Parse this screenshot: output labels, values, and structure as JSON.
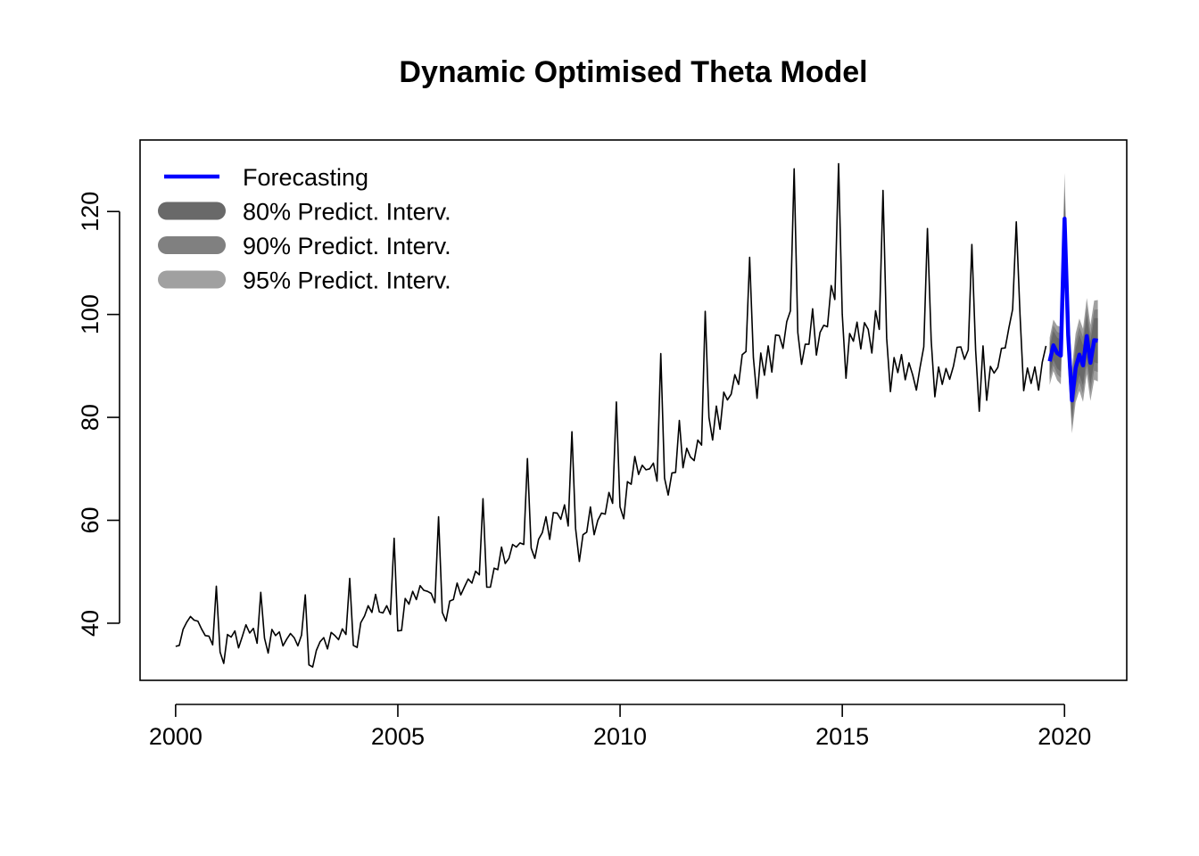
{
  "chart_data": {
    "type": "line",
    "title": "Dynamic Optimised Theta Model",
    "xlabel": "",
    "ylabel": "",
    "xlim": [
      1999.2,
      2021.4
    ],
    "ylim": [
      28.9,
      133.9
    ],
    "x_ticks": [
      "2000",
      "2005",
      "2010",
      "2015",
      "2020"
    ],
    "y_ticks": [
      "40",
      "60",
      "80",
      "100",
      "120"
    ],
    "grid": false,
    "legend_position": "top-left",
    "legend": [
      {
        "label": "Forecasting",
        "color": "#0000ff",
        "kind": "line"
      },
      {
        "label": "80% Predict. Interv.",
        "color": "#696969",
        "kind": "band"
      },
      {
        "label": "90% Predict. Interv.",
        "color": "#808080",
        "kind": "band"
      },
      {
        "label": "95% Predict. Interv.",
        "color": "#a0a0a0",
        "kind": "band"
      }
    ],
    "series": [
      {
        "role": "observed",
        "color": "#000000",
        "start": 2000.0,
        "step": 0.08333,
        "values": [
          35.5,
          35.7,
          38.8,
          40.2,
          41.3,
          40.6,
          40.4,
          38.9,
          37.6,
          37.5,
          35.8,
          47.2,
          34.4,
          32.2,
          37.8,
          37.3,
          38.5,
          35.2,
          37.4,
          39.7,
          38.1,
          39.0,
          36.1,
          46.0,
          37.1,
          34.2,
          38.8,
          37.6,
          38.3,
          35.6,
          36.9,
          38.0,
          37.2,
          35.6,
          37.7,
          45.5,
          31.9,
          31.5,
          34.7,
          36.4,
          37.2,
          35.0,
          38.2,
          37.6,
          36.8,
          38.9,
          37.8,
          48.7,
          35.7,
          35.3,
          40.1,
          41.4,
          43.4,
          42.1,
          45.6,
          42.2,
          42.0,
          43.4,
          41.7,
          56.5,
          38.5,
          38.6,
          44.8,
          43.7,
          46.2,
          44.6,
          47.3,
          46.4,
          46.2,
          45.8,
          44.0,
          60.7,
          42.1,
          40.4,
          44.3,
          44.6,
          47.8,
          45.5,
          47.1,
          48.6,
          47.8,
          50.1,
          49.4,
          64.2,
          47.0,
          47.0,
          50.7,
          50.4,
          54.8,
          51.6,
          52.6,
          55.3,
          54.8,
          55.6,
          55.3,
          72.0,
          54.6,
          52.6,
          56.3,
          57.6,
          60.7,
          56.3,
          61.5,
          61.4,
          60.2,
          63.0,
          58.9,
          77.2,
          58.4,
          52.0,
          57.2,
          57.7,
          62.6,
          57.2,
          60.0,
          61.4,
          61.2,
          65.4,
          63.3,
          83.0,
          62.6,
          60.3,
          67.5,
          67.0,
          72.4,
          68.9,
          70.7,
          69.8,
          70.0,
          71.1,
          67.6,
          92.4,
          68.2,
          64.9,
          69.2,
          69.3,
          79.4,
          70.2,
          74.0,
          72.3,
          71.6,
          75.6,
          74.6,
          100.6,
          80.0,
          75.6,
          82.2,
          77.7,
          84.9,
          83.4,
          84.5,
          88.3,
          86.4,
          92.2,
          92.8,
          111.1,
          91.6,
          83.7,
          92.5,
          88.2,
          93.9,
          88.8,
          96.0,
          95.9,
          93.4,
          98.6,
          100.7,
          128.3,
          96.5,
          90.3,
          94.2,
          94.2,
          101.1,
          92.1,
          96.5,
          97.9,
          97.6,
          105.6,
          102.9,
          129.3,
          100.1,
          87.6,
          96.3,
          94.8,
          98.5,
          93.3,
          98.4,
          97.1,
          92.5,
          100.7,
          97.1,
          124.1,
          95.4,
          85.0,
          91.6,
          88.7,
          92.2,
          87.3,
          90.6,
          88.3,
          85.3,
          89.7,
          93.7,
          116.7,
          95.0,
          84.0,
          89.8,
          86.4,
          89.5,
          87.4,
          89.9,
          93.6,
          93.7,
          91.3,
          93.1,
          113.6,
          93.1,
          81.2,
          93.9,
          83.3,
          89.9,
          88.6,
          89.7,
          93.4,
          93.5,
          97.4,
          101.0,
          118.0,
          99.9,
          85.2,
          89.6,
          86.6,
          89.8,
          85.3,
          90.7,
          93.9
        ]
      },
      {
        "name": "Forecasting",
        "role": "forecast",
        "color": "#0000ff",
        "start": 2019.6667,
        "step": 0.08333,
        "values": [
          90.9,
          94.0,
          92.5,
          92.0,
          118.6,
          95.9,
          83.3,
          89.6,
          92.2,
          90.1,
          95.8,
          90.6,
          95.0,
          94.9
        ],
        "band80_half": [
          2.6,
          2.8,
          3.0,
          3.1,
          4.6,
          3.5,
          3.5,
          3.7,
          3.9,
          3.9,
          4.1,
          4.1,
          4.3,
          4.4
        ],
        "band90_half": [
          3.6,
          3.9,
          4.1,
          4.3,
          6.4,
          4.9,
          4.9,
          5.2,
          5.4,
          5.5,
          5.7,
          5.7,
          5.9,
          6.1
        ],
        "band95_half": [
          4.6,
          5.0,
          5.3,
          5.6,
          8.9,
          6.4,
          6.4,
          6.7,
          7.0,
          7.1,
          7.4,
          7.4,
          7.7,
          7.9
        ]
      }
    ]
  }
}
